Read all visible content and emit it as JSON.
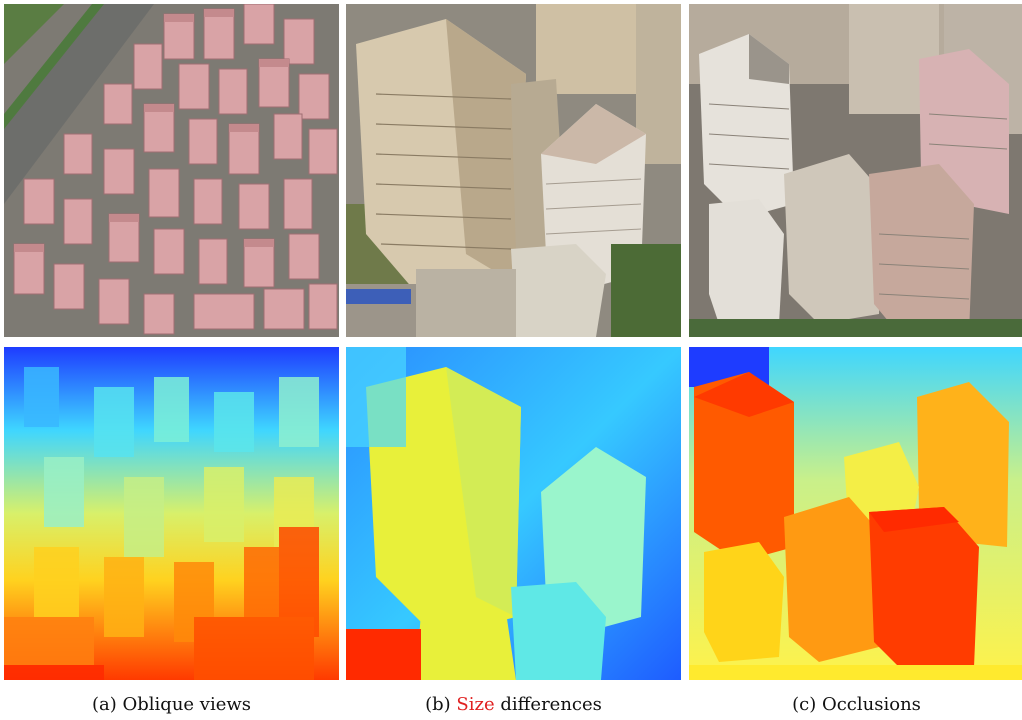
{
  "captions": [
    {
      "label": "(a)",
      "text": "Oblique views"
    },
    {
      "label": "(b)",
      "accent": "Size",
      "text": "differences"
    },
    {
      "label": "(c)",
      "text": "Occlusions"
    }
  ],
  "colors": {
    "caption_accent": "#e02020",
    "depth_far": "#1e3cff",
    "depth_mid": "#3fd6ff",
    "depth_near_mid": "#f5f03a",
    "depth_near": "#ff2a00"
  }
}
